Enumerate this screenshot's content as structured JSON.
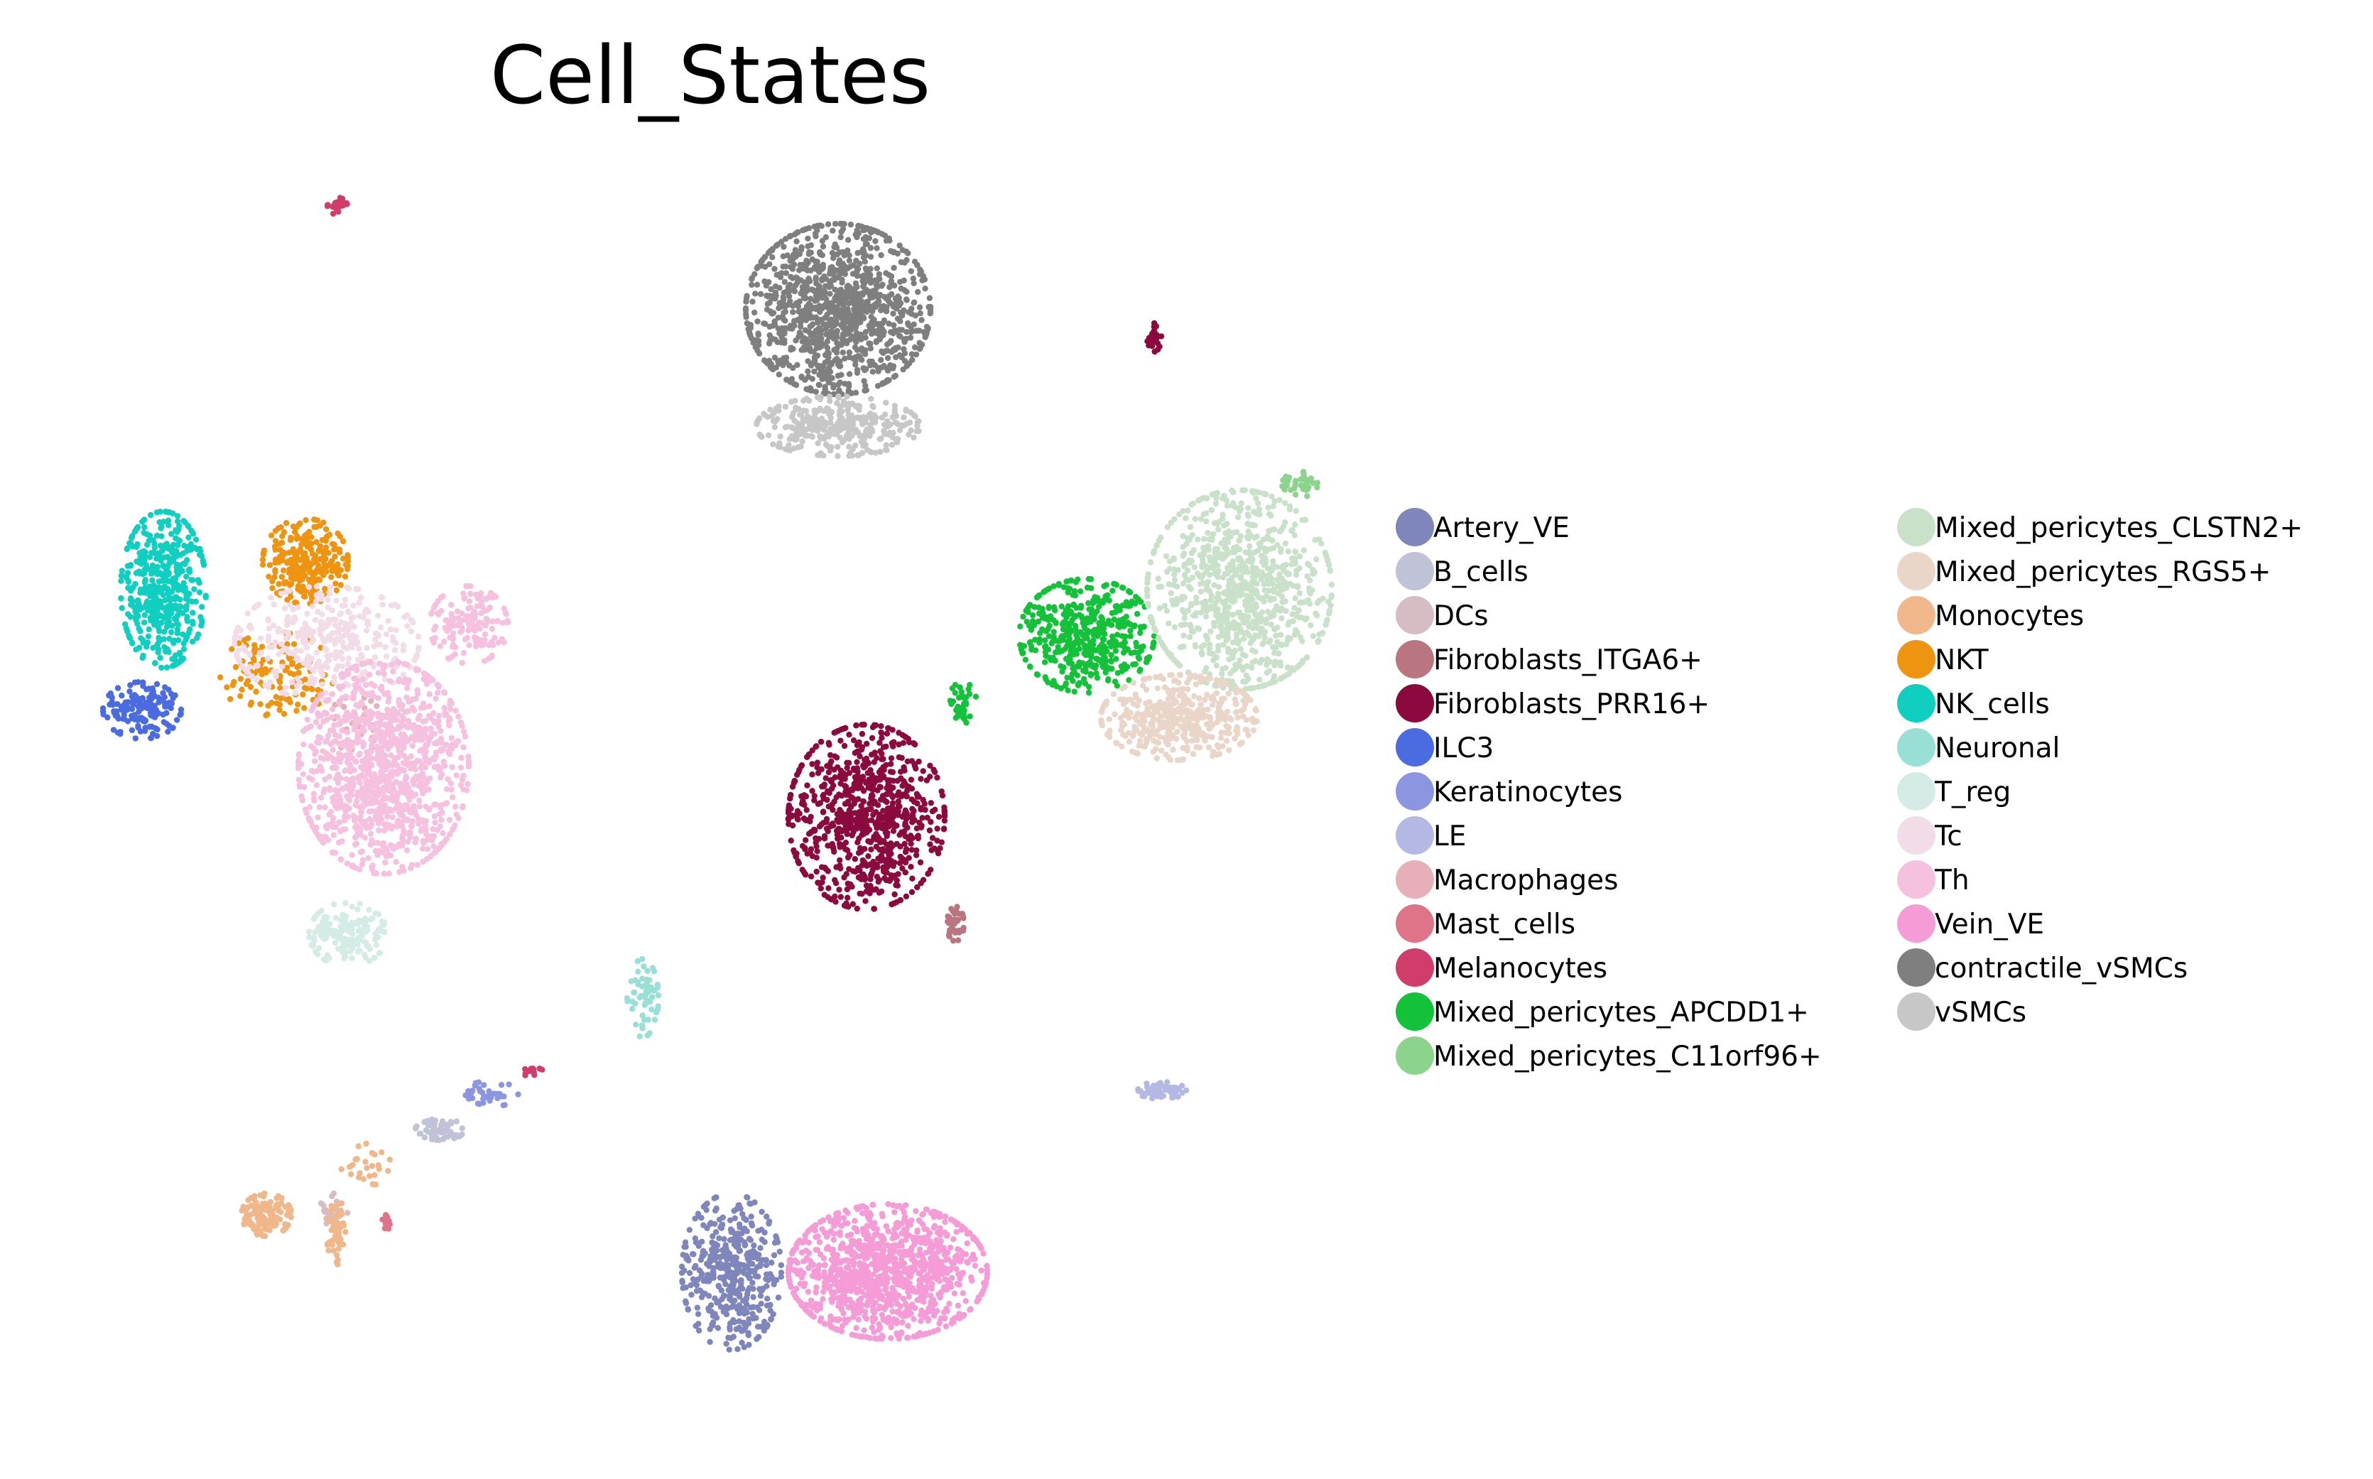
{
  "chart_data": {
    "type": "scatter",
    "title": "Cell_States",
    "xlabel": "",
    "ylabel": "",
    "grid": false,
    "axes_visible": false,
    "legend_position": "right",
    "legend_columns": 2,
    "series": [
      {
        "name": "Artery_VE",
        "color": "#7f86bb",
        "clusters": [
          {
            "cx": 1030,
            "cy": 1790,
            "rx": 70,
            "ry": 110,
            "n": 420
          }
        ]
      },
      {
        "name": "B_cells",
        "color": "#c0c2d8",
        "clusters": [
          {
            "cx": 620,
            "cy": 1590,
            "rx": 35,
            "ry": 15,
            "n": 70
          }
        ]
      },
      {
        "name": "DCs",
        "color": "#d6bcc3",
        "clusters": [
          {
            "cx": 470,
            "cy": 1705,
            "rx": 20,
            "ry": 25,
            "n": 30
          }
        ]
      },
      {
        "name": "Fibroblasts_ITGA6+",
        "color": "#b97680",
        "clusters": [
          {
            "cx": 1345,
            "cy": 1300,
            "rx": 12,
            "ry": 25,
            "n": 40
          }
        ]
      },
      {
        "name": "Fibroblasts_PRR16+",
        "color": "#8b0a3e",
        "clusters": [
          {
            "cx": 1220,
            "cy": 1150,
            "rx": 110,
            "ry": 130,
            "n": 800
          },
          {
            "cx": 1625,
            "cy": 475,
            "rx": 10,
            "ry": 20,
            "n": 25
          }
        ]
      },
      {
        "name": "ILC3",
        "color": "#4a6ce0",
        "clusters": [
          {
            "cx": 200,
            "cy": 1000,
            "rx": 55,
            "ry": 40,
            "n": 170
          }
        ]
      },
      {
        "name": "Keratinocytes",
        "color": "#8c96e0",
        "clusters": [
          {
            "cx": 690,
            "cy": 1540,
            "rx": 40,
            "ry": 18,
            "n": 40
          }
        ]
      },
      {
        "name": "LE",
        "color": "#b4b9e4",
        "clusters": [
          {
            "cx": 1635,
            "cy": 1535,
            "rx": 35,
            "ry": 12,
            "n": 60
          }
        ]
      },
      {
        "name": "Macrophages",
        "color": "#e7afb7",
        "clusters": [
          {
            "cx": 500,
            "cy": 1020,
            "rx": 40,
            "ry": 40,
            "n": 40
          }
        ]
      },
      {
        "name": "Mast_cells",
        "color": "#df7489",
        "clusters": [
          {
            "cx": 545,
            "cy": 1720,
            "rx": 8,
            "ry": 10,
            "n": 14
          }
        ]
      },
      {
        "name": "Melanocytes",
        "color": "#d13d6a",
        "clusters": [
          {
            "cx": 475,
            "cy": 290,
            "rx": 14,
            "ry": 12,
            "n": 30
          },
          {
            "cx": 750,
            "cy": 1508,
            "rx": 15,
            "ry": 8,
            "n": 14
          }
        ]
      },
      {
        "name": "Mixed_pericytes_APCDD1+",
        "color": "#14c23a",
        "clusters": [
          {
            "cx": 1530,
            "cy": 895,
            "rx": 95,
            "ry": 80,
            "n": 480
          },
          {
            "cx": 1355,
            "cy": 990,
            "rx": 20,
            "ry": 30,
            "n": 40
          }
        ]
      },
      {
        "name": "Mixed_pericytes_C11orf96+",
        "color": "#8cd48c",
        "clusters": [
          {
            "cx": 1830,
            "cy": 682,
            "rx": 25,
            "ry": 18,
            "n": 40
          }
        ]
      },
      {
        "name": "Mixed_pericytes_CLSTN2+",
        "color": "#c8e1c8",
        "clusters": [
          {
            "cx": 1745,
            "cy": 830,
            "rx": 130,
            "ry": 140,
            "n": 900
          }
        ]
      },
      {
        "name": "Mixed_pericytes_RGS5+",
        "color": "#ead5c9",
        "clusters": [
          {
            "cx": 1660,
            "cy": 1010,
            "rx": 110,
            "ry": 60,
            "n": 420
          }
        ]
      },
      {
        "name": "Monocytes",
        "color": "#f0b78a",
        "clusters": [
          {
            "cx": 375,
            "cy": 1710,
            "rx": 35,
            "ry": 30,
            "n": 130
          },
          {
            "cx": 475,
            "cy": 1735,
            "rx": 15,
            "ry": 45,
            "n": 50
          },
          {
            "cx": 515,
            "cy": 1640,
            "rx": 35,
            "ry": 30,
            "n": 25
          }
        ]
      },
      {
        "name": "NKT",
        "color": "#ee9410",
        "clusters": [
          {
            "cx": 430,
            "cy": 790,
            "rx": 60,
            "ry": 60,
            "n": 260
          },
          {
            "cx": 390,
            "cy": 950,
            "rx": 80,
            "ry": 60,
            "n": 120
          }
        ]
      },
      {
        "name": "NK_cells",
        "color": "#10cfc0",
        "clusters": [
          {
            "cx": 230,
            "cy": 830,
            "rx": 60,
            "ry": 110,
            "n": 460
          }
        ]
      },
      {
        "name": "Neuronal",
        "color": "#98dfd5",
        "clusters": [
          {
            "cx": 905,
            "cy": 1405,
            "rx": 22,
            "ry": 55,
            "n": 60
          }
        ]
      },
      {
        "name": "T_reg",
        "color": "#d4ebe6",
        "clusters": [
          {
            "cx": 490,
            "cy": 1315,
            "rx": 55,
            "ry": 45,
            "n": 160
          }
        ]
      },
      {
        "name": "Tc",
        "color": "#f1dce7",
        "clusters": [
          {
            "cx": 460,
            "cy": 905,
            "rx": 130,
            "ry": 80,
            "n": 360
          }
        ]
      },
      {
        "name": "Th",
        "color": "#f5c1de",
        "clusters": [
          {
            "cx": 540,
            "cy": 1080,
            "rx": 120,
            "ry": 150,
            "n": 1100
          },
          {
            "cx": 660,
            "cy": 880,
            "rx": 55,
            "ry": 55,
            "n": 150
          }
        ]
      },
      {
        "name": "Vein_VE",
        "color": "#f59bd6",
        "clusters": [
          {
            "cx": 1250,
            "cy": 1790,
            "rx": 140,
            "ry": 95,
            "n": 1100
          }
        ]
      },
      {
        "name": "contractile_vSMCs",
        "color": "#7f7f7f",
        "clusters": [
          {
            "cx": 1180,
            "cy": 435,
            "rx": 130,
            "ry": 120,
            "n": 1100
          }
        ]
      },
      {
        "name": "vSMCs",
        "color": "#c7c7c7",
        "clusters": [
          {
            "cx": 1180,
            "cy": 600,
            "rx": 115,
            "ry": 42,
            "n": 320
          }
        ]
      }
    ]
  }
}
